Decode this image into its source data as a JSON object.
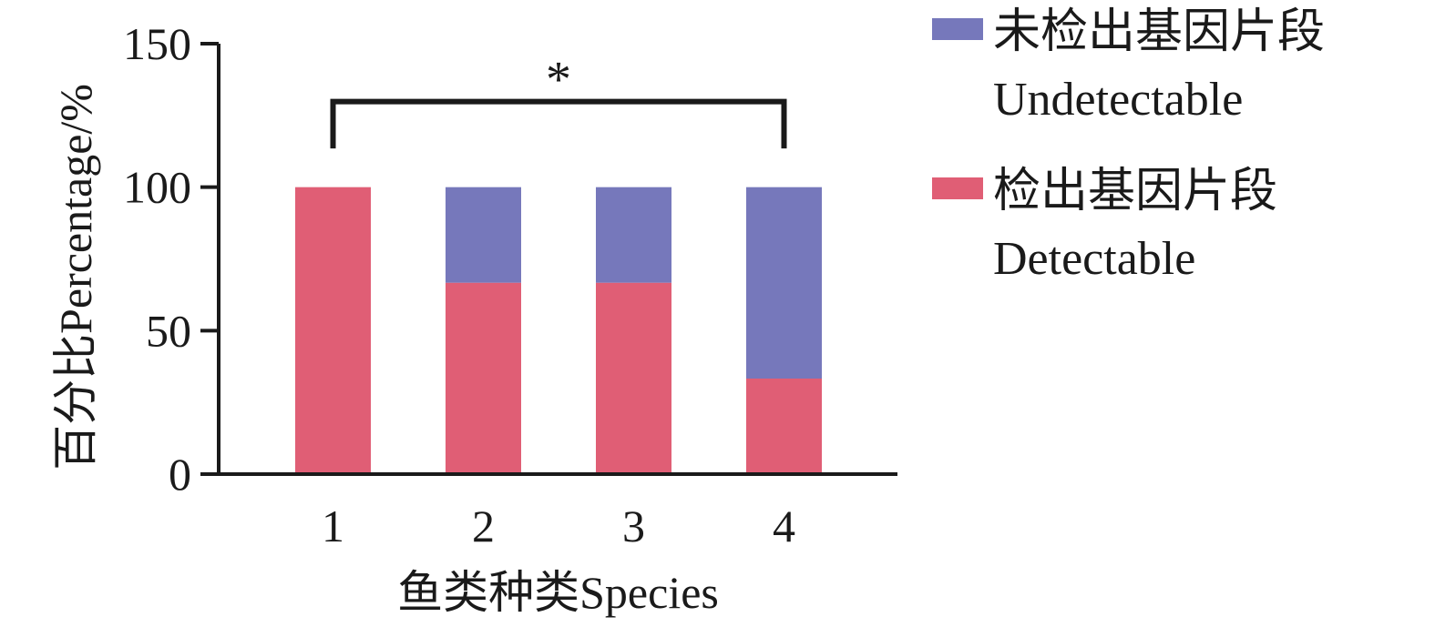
{
  "chart_data": {
    "type": "bar",
    "stacked": true,
    "categories": [
      "1",
      "2",
      "3",
      "4"
    ],
    "series": [
      {
        "name_cn": "检出基因片段",
        "name_en": "Detectable",
        "color": "#e05e75",
        "values": [
          100,
          66.7,
          66.7,
          33.3
        ]
      },
      {
        "name_cn": "未检出基因片段",
        "name_en": "Undetectable",
        "color": "#7678bb",
        "values": [
          0,
          33.3,
          33.3,
          66.7
        ]
      }
    ],
    "legend_order": [
      1,
      0
    ],
    "legend_position": "top-right",
    "xlabel": "鱼类种类Species",
    "ylabel": "百分比Percentage/%",
    "ylim": [
      0,
      150
    ],
    "yticks": [
      0,
      50,
      100,
      150
    ],
    "grid": false,
    "significance": {
      "from_category": "1",
      "to_category": "4",
      "symbol": "*",
      "height": 130
    }
  }
}
